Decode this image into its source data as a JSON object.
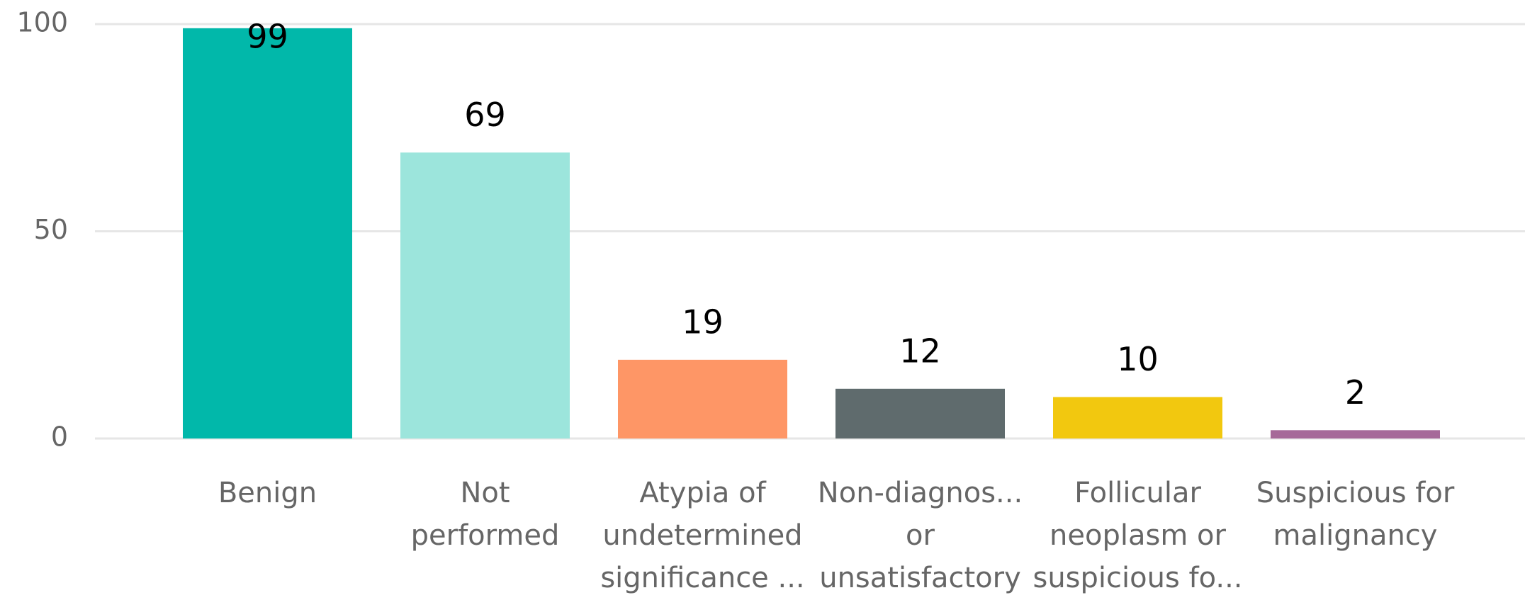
{
  "chart_data": {
    "type": "bar",
    "categories": [
      "Benign",
      "Not\nperformed",
      "Atypia of\nundetermined\nsignificance ...",
      "Non-diagnos...\nor\nunsatisfactory",
      "Follicular\nneoplasm or\nsuspicious fo...",
      "Suspicious for\nmalignancy"
    ],
    "values": [
      99,
      69,
      19,
      12,
      10,
      2
    ],
    "colors": [
      "#01B8AA",
      "#9CE5DC",
      "#FE9666",
      "#5F6B6D",
      "#F2C80F",
      "#A66999"
    ],
    "ylim": [
      0,
      100
    ],
    "yticks": [
      0,
      50,
      100
    ],
    "grid": true
  }
}
